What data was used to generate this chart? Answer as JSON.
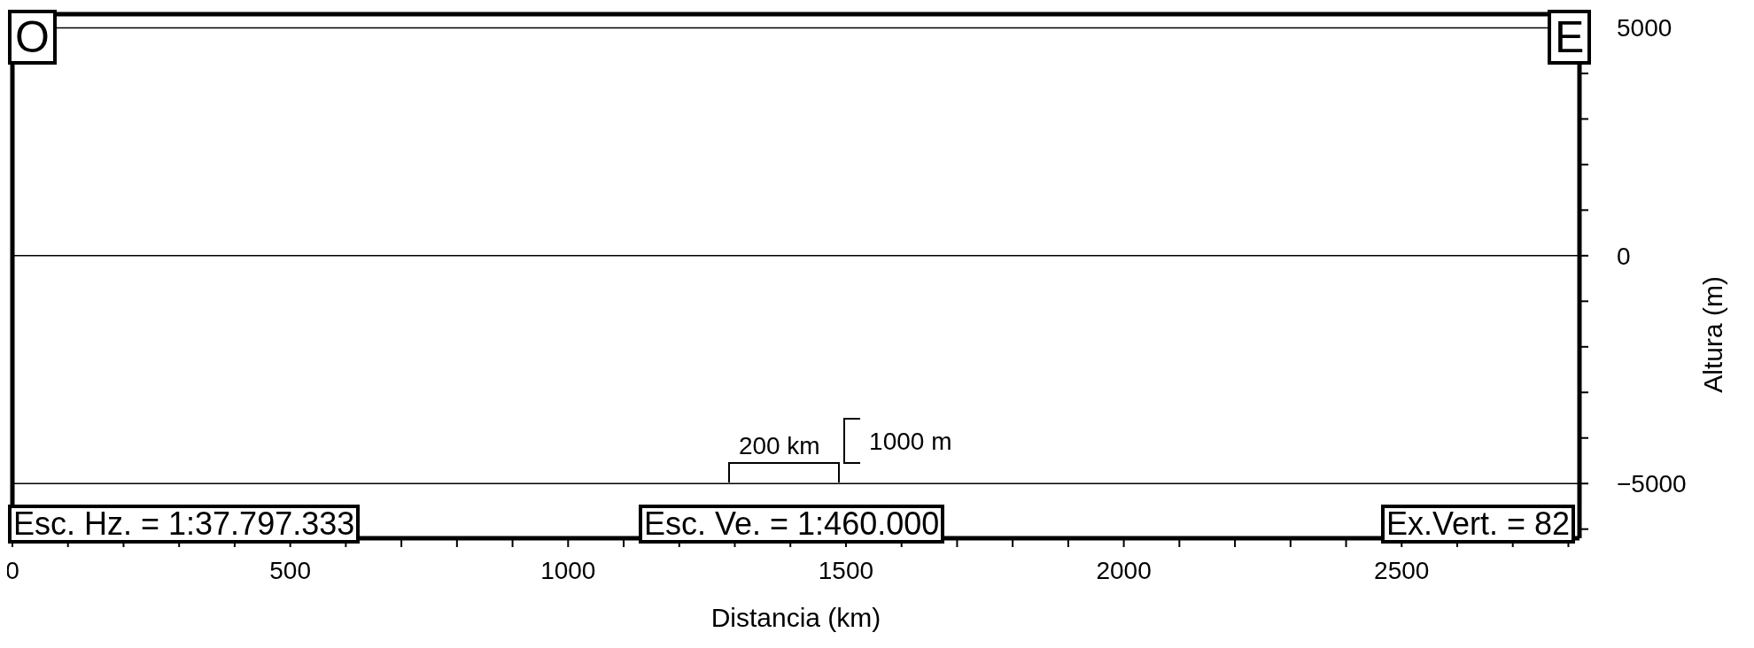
{
  "chart_data": {
    "type": "line",
    "xlabel": "Distancia (km)",
    "ylabel": "Altura (m)",
    "xlim": [
      0,
      2820
    ],
    "xticks": [
      0,
      {
        "value": 100,
        "label": null
      },
      {
        "value": 200,
        "label": null
      },
      {
        "value": 300,
        "label": null
      },
      {
        "value": 400,
        "label": null
      },
      500,
      {
        "value": 600,
        "label": null
      },
      {
        "value": 700,
        "label": null
      },
      {
        "value": 800,
        "label": null
      },
      {
        "value": 900,
        "label": null
      },
      1000,
      {
        "value": 1100,
        "label": null
      },
      {
        "value": 1200,
        "label": null
      },
      {
        "value": 1300,
        "label": null
      },
      {
        "value": 1400,
        "label": null
      },
      1500,
      {
        "value": 1600,
        "label": null
      },
      {
        "value": 1700,
        "label": null
      },
      {
        "value": 1800,
        "label": null
      },
      {
        "value": 1900,
        "label": null
      },
      2000,
      {
        "value": 2100,
        "label": null
      },
      {
        "value": 2200,
        "label": null
      },
      {
        "value": 2300,
        "label": null
      },
      {
        "value": 2400,
        "label": null
      },
      2500,
      {
        "value": 2600,
        "label": null
      },
      {
        "value": 2700,
        "label": null
      },
      {
        "value": 2800,
        "label": null
      }
    ],
    "ylim": [
      -6200,
      5300
    ],
    "yticks": [
      {
        "value": -6000,
        "label": null
      },
      {
        "value": -5000,
        "label": "−5000"
      },
      {
        "value": -4000,
        "label": null
      },
      {
        "value": -3000,
        "label": null
      },
      {
        "value": -2000,
        "label": null
      },
      {
        "value": -1000,
        "label": null
      },
      0,
      {
        "value": 1000,
        "label": null
      },
      {
        "value": 2000,
        "label": null
      },
      {
        "value": 3000,
        "label": null
      },
      {
        "value": 4000,
        "label": null
      },
      5000
    ],
    "ref_lines": [
      {
        "axis": "y",
        "value": 5000,
        "color": "#000000"
      },
      {
        "axis": "y",
        "value": 0,
        "color": "#000000"
      },
      {
        "axis": "y",
        "value": -5000,
        "color": "#000000"
      }
    ],
    "annotations": [
      "O",
      "E",
      "Esc. Hz. = 1:37.797.333",
      "Esc. Ve. = 1:460.000",
      "Ex.Vert. = 82",
      "1000 m",
      "200 km"
    ],
    "tick_labels": "xy"
  }
}
